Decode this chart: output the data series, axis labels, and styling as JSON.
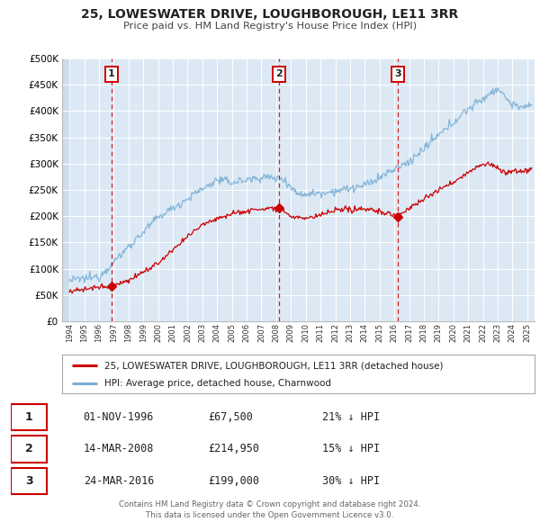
{
  "title": "25, LOWESWATER DRIVE, LOUGHBOROUGH, LE11 3RR",
  "subtitle": "Price paid vs. HM Land Registry's House Price Index (HPI)",
  "hpi_label": "HPI: Average price, detached house, Charnwood",
  "property_label": "25, LOWESWATER DRIVE, LOUGHBOROUGH, LE11 3RR (detached house)",
  "footer_line1": "Contains HM Land Registry data © Crown copyright and database right 2024.",
  "footer_line2": "This data is licensed under the Open Government Licence v3.0.",
  "hpi_color": "#7bafd4",
  "property_color": "#cc0000",
  "plot_bg_color": "#dce9f5",
  "ylim": [
    0,
    500000
  ],
  "yticks": [
    0,
    50000,
    100000,
    150000,
    200000,
    250000,
    300000,
    350000,
    400000,
    450000,
    500000
  ],
  "transactions": [
    {
      "label": "1",
      "date": "01-NOV-1996",
      "price_str": "£67,500",
      "pct_str": "21% ↓ HPI",
      "x_year": 1996.83,
      "y_val": 67500
    },
    {
      "label": "2",
      "date": "14-MAR-2008",
      "price_str": "£214,950",
      "pct_str": "15% ↓ HPI",
      "x_year": 2008.21,
      "y_val": 214950
    },
    {
      "label": "3",
      "date": "24-MAR-2016",
      "price_str": "£199,000",
      "pct_str": "30% ↓ HPI",
      "x_year": 2016.23,
      "y_val": 199000
    }
  ],
  "xlim": [
    1993.5,
    2025.5
  ],
  "xticks": [
    1994,
    1995,
    1996,
    1997,
    1998,
    1999,
    2000,
    2001,
    2002,
    2003,
    2004,
    2005,
    2006,
    2007,
    2008,
    2009,
    2010,
    2011,
    2012,
    2013,
    2014,
    2015,
    2016,
    2017,
    2018,
    2019,
    2020,
    2021,
    2022,
    2023,
    2024,
    2025
  ]
}
